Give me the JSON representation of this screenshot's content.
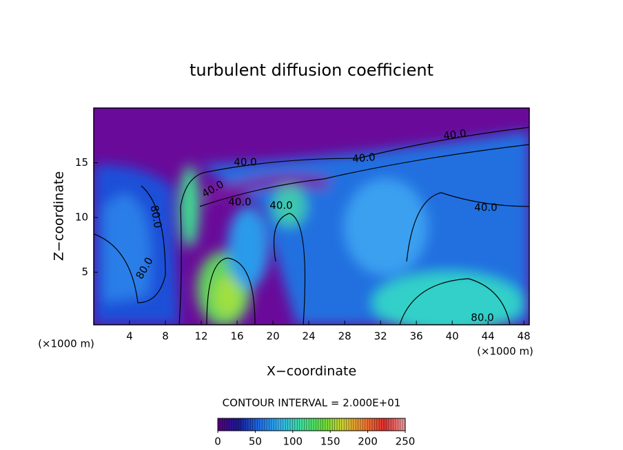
{
  "chart_data": {
    "type": "heatmap",
    "title": "turbulent diffusion coefficient",
    "xlabel": "X−coordinate",
    "ylabel": "Z−coordinate",
    "xunit": "(×1000 m)",
    "yunit": "(×1000 m)",
    "xlim": [
      0,
      48.6
    ],
    "xticks": [
      4,
      8,
      12,
      16,
      20,
      24,
      28,
      32,
      36,
      40,
      44,
      48
    ],
    "ylim": [
      0.2,
      20
    ],
    "yticks": [
      5,
      10,
      15
    ],
    "contour_interval": "CONTOUR INTERVAL = 2.000E+01",
    "contour_labels": [
      {
        "value": 40,
        "label": "40.0"
      },
      {
        "value": 40,
        "label": "40.0"
      },
      {
        "value": 40,
        "label": "40.0"
      },
      {
        "value": 40,
        "label": "40.0"
      },
      {
        "value": 40,
        "label": "40.0"
      },
      {
        "value": 40,
        "label": "40.0"
      },
      {
        "value": 40,
        "label": "40.0"
      },
      {
        "value": 80,
        "label": "80.0"
      },
      {
        "value": 80,
        "label": "80.0"
      },
      {
        "value": 80,
        "label": "80.0"
      }
    ],
    "colorbar": {
      "lim": [
        0,
        250
      ],
      "ticks": [
        0,
        50,
        100,
        150,
        200,
        250
      ],
      "colors": [
        "#5a0080",
        "#1a1a9a",
        "#1e6ee6",
        "#33b4f0",
        "#40e0a0",
        "#60e040",
        "#d0d030",
        "#f08030",
        "#e03030",
        "#f0a0a0"
      ]
    }
  }
}
